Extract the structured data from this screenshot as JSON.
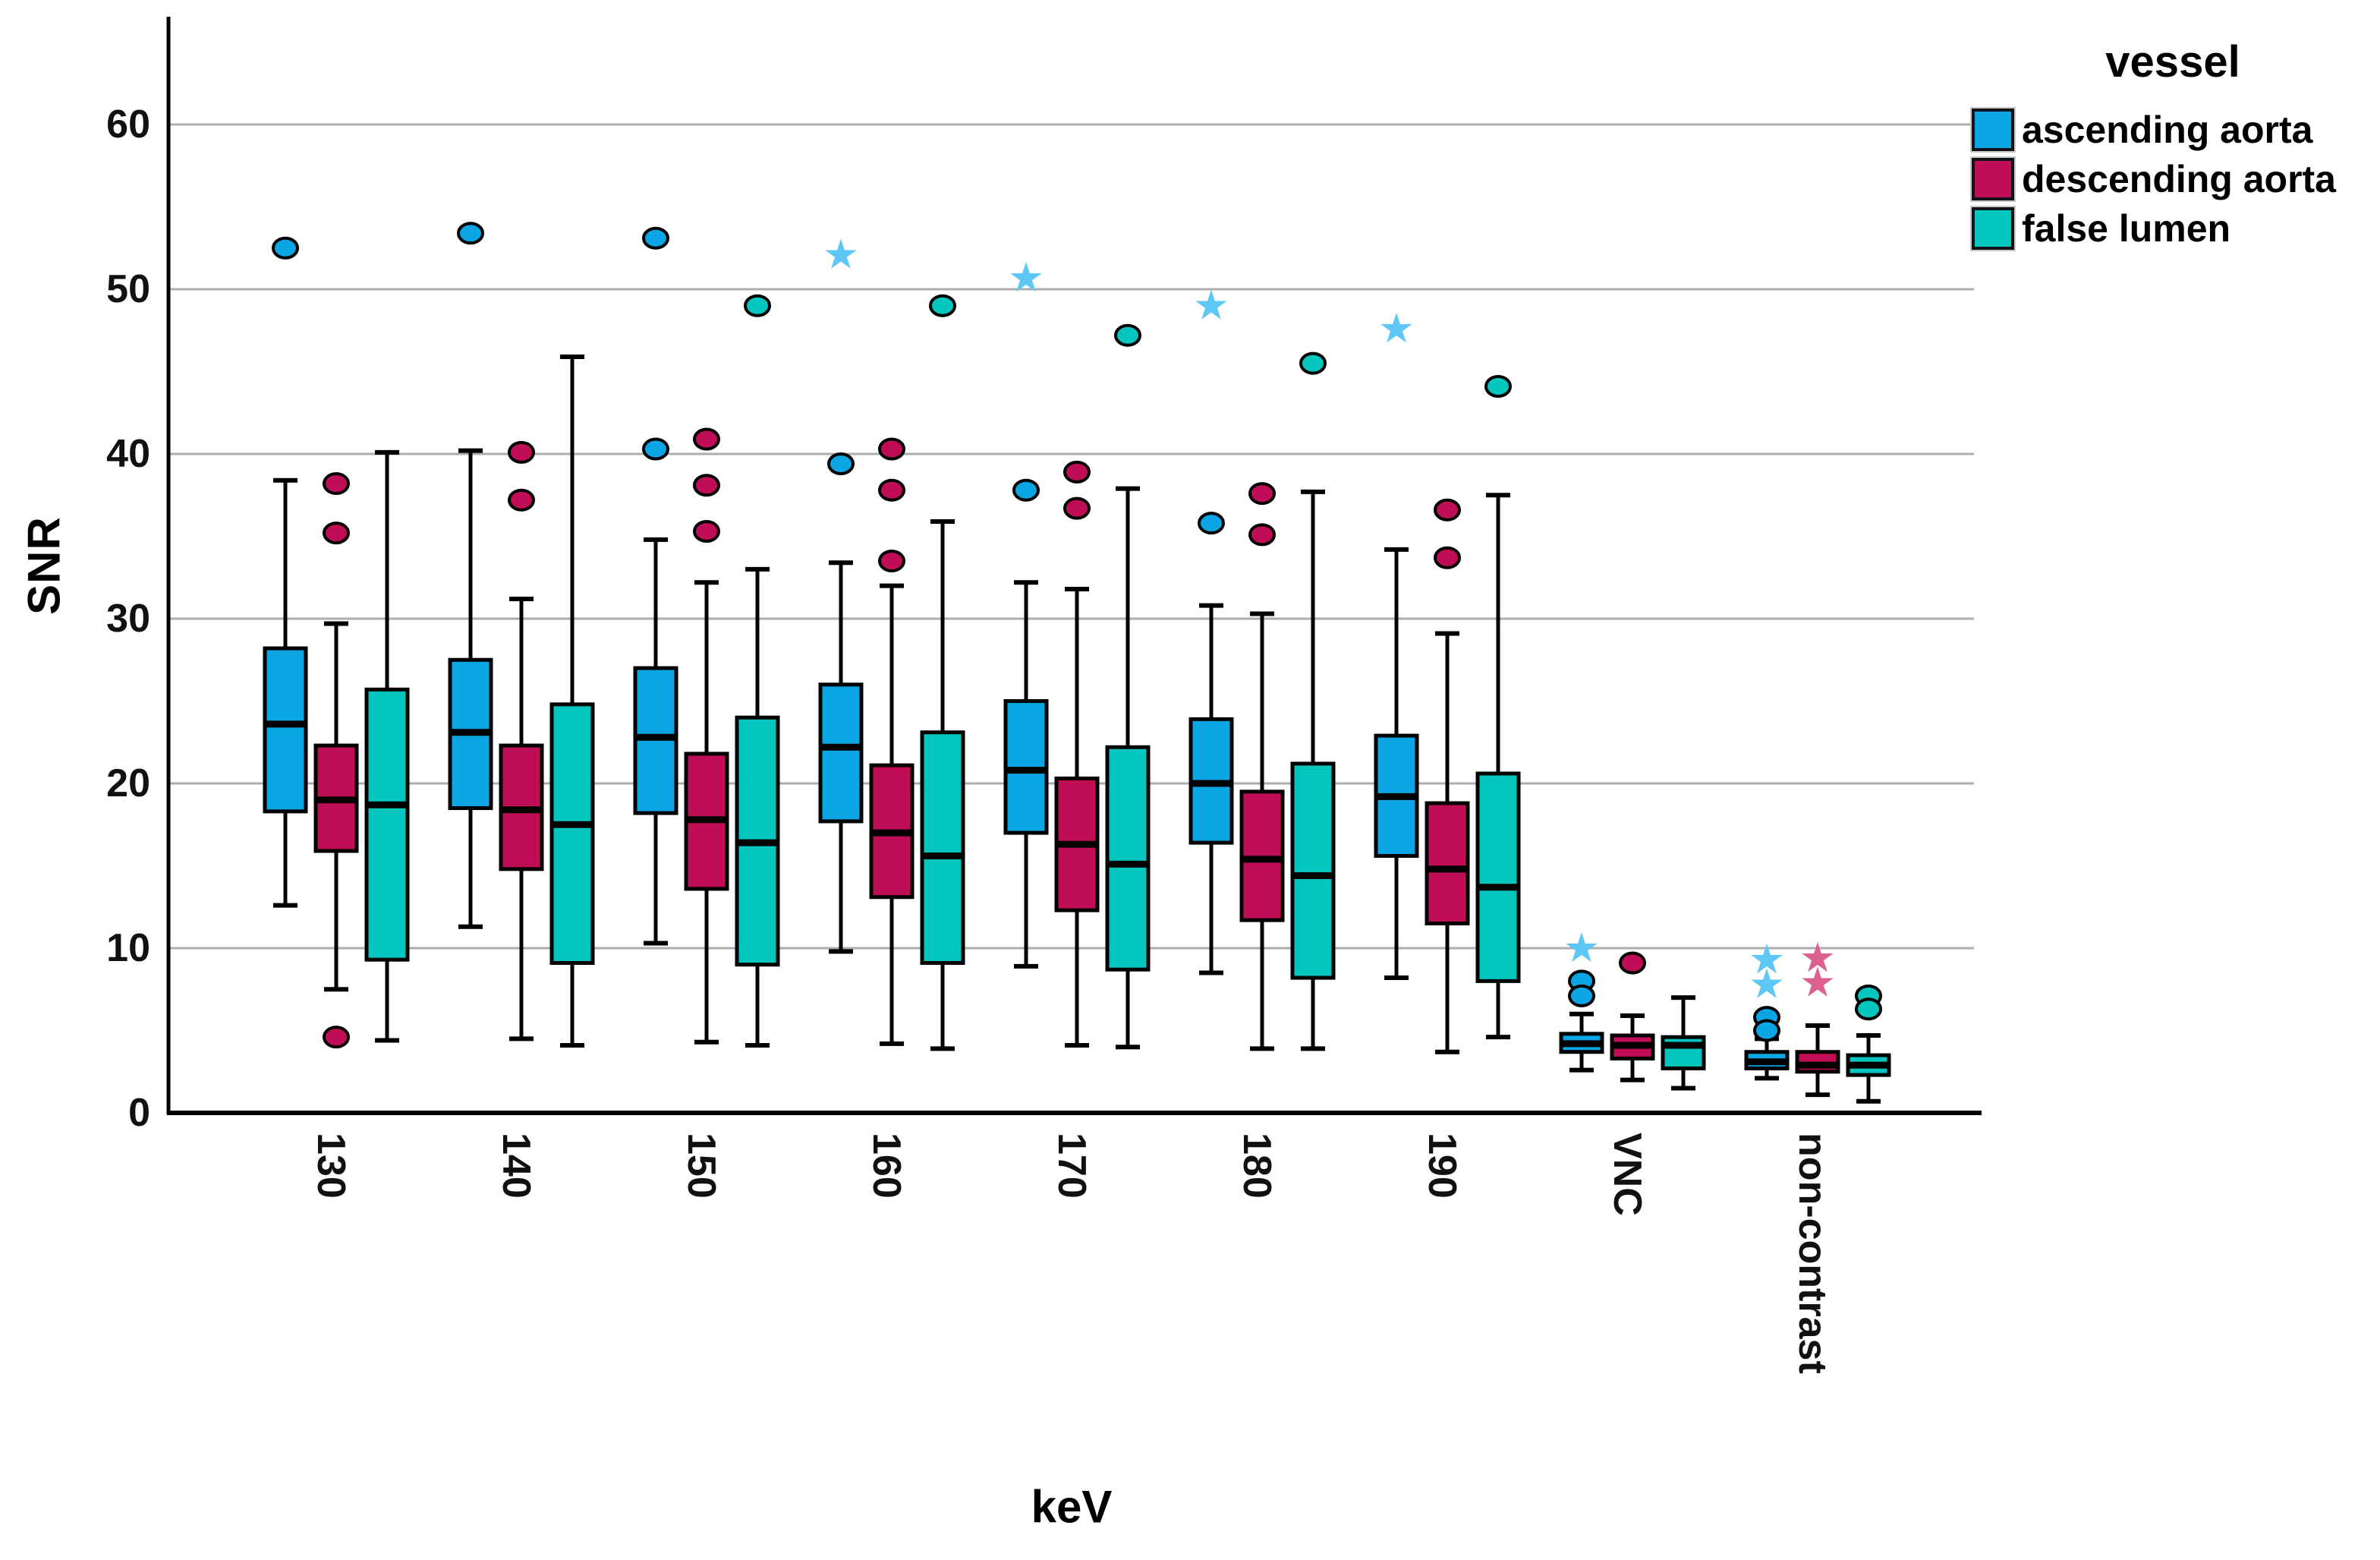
{
  "figure": {
    "ylabel": "SNR",
    "xlabel": "keV",
    "legend_title": "vessel"
  },
  "chart_data": {
    "type": "box",
    "title": "",
    "xlabel": "keV",
    "ylabel": "SNR",
    "ylim": [
      0,
      66
    ],
    "yticks": [
      0,
      10,
      20,
      30,
      40,
      50,
      60
    ],
    "grid": "horizontal",
    "legend_position": "right-top",
    "categories": [
      "130",
      "140",
      "150",
      "160",
      "170",
      "180",
      "190",
      "VNC",
      "non-contrast"
    ],
    "colors": {
      "gridline": "#ADADAD",
      "axis": "#000000",
      "ascending_star": "#5EC7F5",
      "descending_star": "#DB6191"
    },
    "series": [
      {
        "name": "ascending aorta",
        "color": "#0BA5E4",
        "boxes": [
          {
            "low": 12.6,
            "q1": 18.3,
            "median": 23.6,
            "q3": 28.2,
            "high": 38.4
          },
          {
            "low": 11.3,
            "q1": 18.5,
            "median": 23.1,
            "q3": 27.5,
            "high": 40.2
          },
          {
            "low": 10.3,
            "q1": 18.2,
            "median": 22.8,
            "q3": 27.0,
            "high": 34.8
          },
          {
            "low": 9.8,
            "q1": 17.7,
            "median": 22.2,
            "q3": 26.0,
            "high": 33.4
          },
          {
            "low": 8.9,
            "q1": 17.0,
            "median": 20.8,
            "q3": 25.0,
            "high": 32.2
          },
          {
            "low": 8.5,
            "q1": 16.4,
            "median": 20.0,
            "q3": 23.9,
            "high": 30.8
          },
          {
            "low": 8.2,
            "q1": 15.6,
            "median": 19.2,
            "q3": 22.9,
            "high": 34.2
          },
          {
            "low": 2.6,
            "q1": 3.7,
            "median": 4.2,
            "q3": 4.8,
            "high": 6.0
          },
          {
            "low": 2.1,
            "q1": 2.7,
            "median": 3.1,
            "q3": 3.7,
            "high": 4.5
          }
        ],
        "outliers": [
          [
            52.5
          ],
          [
            53.4
          ],
          [
            53.1,
            40.3
          ],
          [
            39.4
          ],
          [
            37.8
          ],
          [
            35.8
          ],
          [],
          [
            8.0,
            7.1
          ],
          [
            5.8,
            5.0
          ]
        ],
        "extremes": [
          [],
          [],
          [],
          [
            52.1
          ],
          [
            50.7
          ],
          [
            49.0
          ],
          [
            47.6
          ],
          [
            10.0
          ],
          [
            9.3,
            7.8
          ]
        ]
      },
      {
        "name": "descending aorta",
        "color": "#C00D58",
        "boxes": [
          {
            "low": 7.5,
            "q1": 15.9,
            "median": 19.0,
            "q3": 22.3,
            "high": 29.7
          },
          {
            "low": 4.5,
            "q1": 14.8,
            "median": 18.4,
            "q3": 22.3,
            "high": 31.2
          },
          {
            "low": 4.3,
            "q1": 13.6,
            "median": 17.8,
            "q3": 21.8,
            "high": 32.2
          },
          {
            "low": 4.2,
            "q1": 13.1,
            "median": 17.0,
            "q3": 21.1,
            "high": 32.0
          },
          {
            "low": 4.1,
            "q1": 12.3,
            "median": 16.3,
            "q3": 20.3,
            "high": 31.8
          },
          {
            "low": 3.9,
            "q1": 11.7,
            "median": 15.4,
            "q3": 19.5,
            "high": 30.3
          },
          {
            "low": 3.7,
            "q1": 11.5,
            "median": 14.8,
            "q3": 18.8,
            "high": 29.1
          },
          {
            "low": 2.0,
            "q1": 3.3,
            "median": 4.1,
            "q3": 4.7,
            "high": 5.9
          },
          {
            "low": 1.1,
            "q1": 2.5,
            "median": 2.9,
            "q3": 3.7,
            "high": 5.3
          }
        ],
        "outliers": [
          [
            38.2,
            35.2,
            4.6
          ],
          [
            40.1,
            37.2
          ],
          [
            40.9,
            38.1,
            35.3
          ],
          [
            40.3,
            37.8,
            33.5
          ],
          [
            38.9,
            36.7
          ],
          [
            37.6,
            35.1
          ],
          [
            36.6,
            33.7
          ],
          [
            9.1
          ],
          []
        ],
        "extremes": [
          [],
          [],
          [],
          [],
          [],
          [],
          [],
          [],
          [
            9.4,
            7.9
          ]
        ]
      },
      {
        "name": "false lumen",
        "color": "#04C6BE",
        "boxes": [
          {
            "low": 4.4,
            "q1": 9.3,
            "median": 18.7,
            "q3": 25.7,
            "high": 40.1
          },
          {
            "low": 4.1,
            "q1": 9.1,
            "median": 17.5,
            "q3": 24.8,
            "high": 45.9
          },
          {
            "low": 4.1,
            "q1": 9.0,
            "median": 16.4,
            "q3": 24.0,
            "high": 33.0
          },
          {
            "low": 3.9,
            "q1": 9.1,
            "median": 15.6,
            "q3": 23.1,
            "high": 35.9
          },
          {
            "low": 4.0,
            "q1": 8.7,
            "median": 15.1,
            "q3": 22.2,
            "high": 37.9
          },
          {
            "low": 3.9,
            "q1": 8.2,
            "median": 14.4,
            "q3": 21.2,
            "high": 37.7
          },
          {
            "low": 4.6,
            "q1": 8.0,
            "median": 13.7,
            "q3": 20.6,
            "high": 37.5
          },
          {
            "low": 1.5,
            "q1": 2.7,
            "median": 4.1,
            "q3": 4.6,
            "high": 7.0
          },
          {
            "low": 0.7,
            "q1": 2.3,
            "median": 2.9,
            "q3": 3.5,
            "high": 4.7
          }
        ],
        "outliers": [
          [],
          [],
          [
            49.0
          ],
          [
            49.0
          ],
          [
            47.2
          ],
          [
            45.5
          ],
          [
            44.1
          ],
          [],
          [
            7.1,
            6.3
          ]
        ],
        "extremes": [
          [],
          [],
          [],
          [],
          [],
          [],
          [],
          [],
          []
        ]
      }
    ]
  }
}
